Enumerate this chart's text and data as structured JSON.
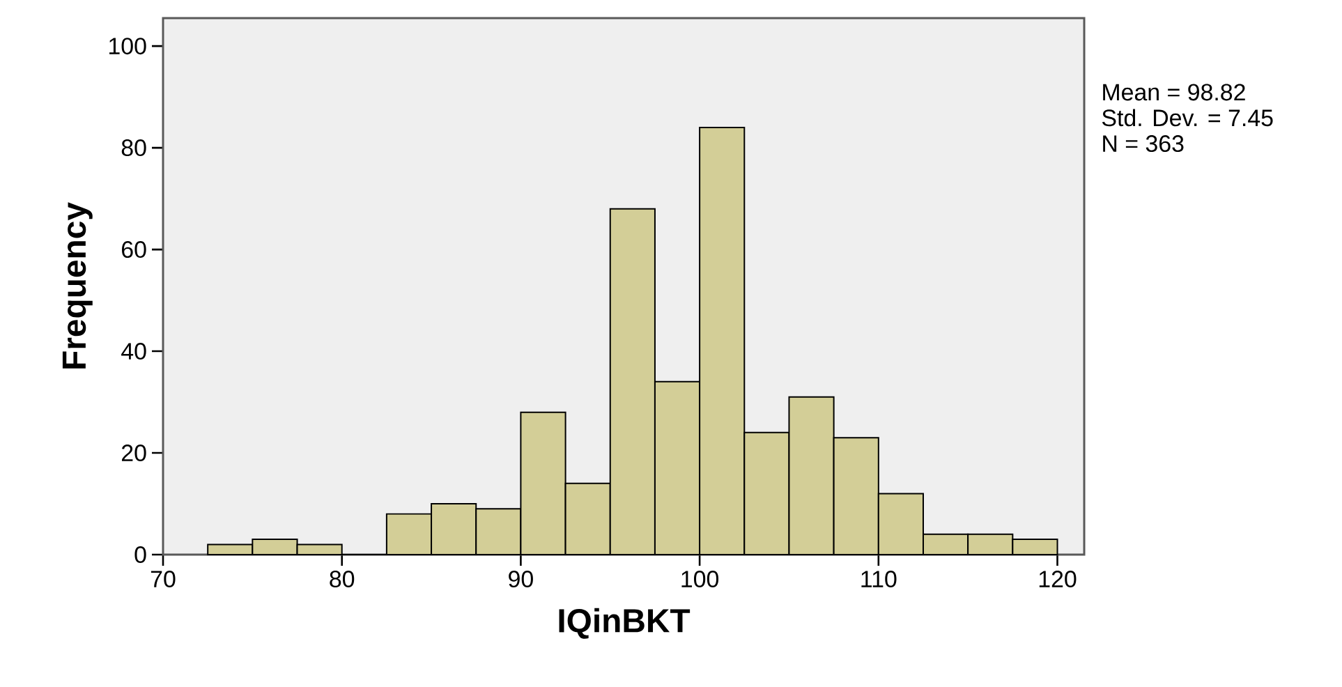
{
  "chart_data": {
    "type": "histogram",
    "xlabel": "IQinBKT",
    "ylabel": "Frequency",
    "bins": [
      72.5,
      75,
      77.5,
      80,
      82.5,
      85,
      87.5,
      90,
      92.5,
      95,
      97.5,
      100,
      102.5,
      105,
      107.5,
      110,
      112.5,
      115,
      117.5,
      120
    ],
    "values": [
      2,
      3,
      2,
      0,
      8,
      10,
      9,
      28,
      14,
      68,
      34,
      84,
      24,
      31,
      23,
      12,
      4,
      4,
      3
    ],
    "color": "#d3ce97",
    "xlim": [
      70,
      121.5
    ],
    "ylim": [
      0,
      105.5
    ],
    "xticks": [
      70,
      80,
      90,
      100,
      110,
      120
    ],
    "yticks": [
      0,
      20,
      40,
      60,
      80,
      100
    ],
    "grid": false,
    "annotations": [
      "Mean = 98.82",
      "Std. Dev. = 7.45",
      "N = 363"
    ]
  }
}
